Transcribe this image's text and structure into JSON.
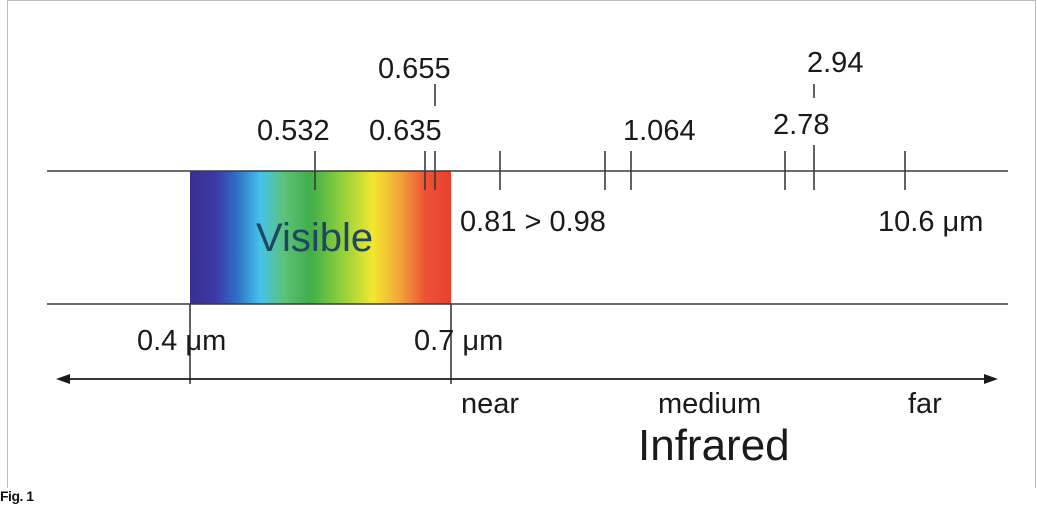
{
  "figure_label": "Fig. 1",
  "band": {
    "visible_label": "Visible",
    "start_label": "0.4 μm",
    "end_label": "0.7 μm"
  },
  "wavelength_marks": {
    "m0532": "0.532",
    "m0635": "0.635",
    "m0655": "0.655",
    "range_081_098": "0.81 > 0.98",
    "m1064": "1.064",
    "m278": "2.78",
    "m294": "2.94",
    "m106": "10.6 μm"
  },
  "infrared": {
    "near": "near",
    "medium": "medium",
    "far": "far",
    "title": "Infrared"
  },
  "colors": {
    "line": "#3a3a3a",
    "spectrum": [
      "#3a2f8f",
      "#3b3aa8",
      "#2f7ed0",
      "#42c0ea",
      "#4fbf6a",
      "#3fae49",
      "#cfe03a",
      "#f3e72e",
      "#f4a636",
      "#ee5334",
      "#e8402d"
    ]
  }
}
